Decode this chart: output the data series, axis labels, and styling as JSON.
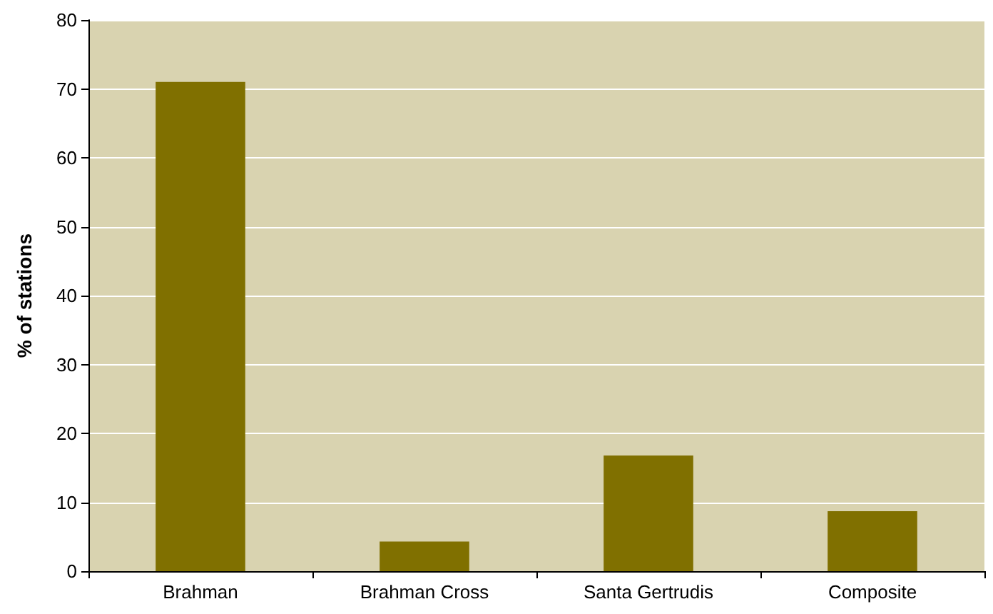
{
  "chart_data": {
    "type": "bar",
    "ylabel": "% of stations",
    "categories": [
      "Brahman",
      "Brahman Cross",
      "Santa Gertrudis",
      "Composite"
    ],
    "values": [
      71,
      4.3,
      16.8,
      8.7
    ],
    "color": "#807000",
    "ylim": [
      0,
      80
    ],
    "yticks": [
      0,
      10,
      20,
      30,
      40,
      50,
      60,
      70,
      80
    ],
    "grid": "y"
  }
}
